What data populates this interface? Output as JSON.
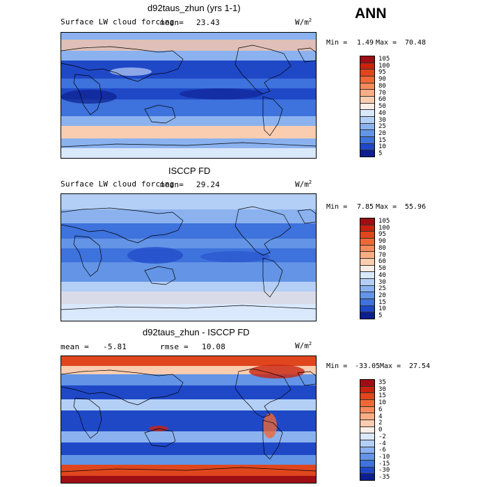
{
  "season": "ANN",
  "panels": [
    {
      "title": "d92taus_zhun (yrs 1-1)",
      "left_label": "Surface LW cloud forcing",
      "mean_label": "mean=",
      "mean_value": "23.43",
      "units_main": "W/m",
      "units_sup": "2",
      "min_label": "Min =",
      "min_value": "1.49",
      "max_label": "Max =",
      "max_value": "70.48",
      "colorbar": {
        "labels": [
          "105",
          "100",
          "95",
          "90",
          "80",
          "70",
          "60",
          "50",
          "40",
          "30",
          "25",
          "20",
          "15",
          "10",
          "5"
        ],
        "colors": [
          "#9e0e14",
          "#c8230f",
          "#e0461e",
          "#ee6838",
          "#f58a5c",
          "#f9ad85",
          "#fbcdb0",
          "#fbeee6",
          "#d9e8fb",
          "#b4cff5",
          "#8bb2ef",
          "#6394e6",
          "#3e72dc",
          "#1f48c7",
          "#0d1f8f"
        ]
      }
    },
    {
      "title": "ISCCP FD",
      "left_label": "Surface LW cloud forcing",
      "mean_label": "mean=",
      "mean_value": "29.24",
      "units_main": "W/m",
      "units_sup": "2",
      "min_label": "Min =",
      "min_value": "7.85",
      "max_label": "Max =",
      "max_value": "55.96",
      "colorbar": {
        "labels": [
          "105",
          "100",
          "95",
          "90",
          "80",
          "70",
          "60",
          "50",
          "40",
          "30",
          "25",
          "20",
          "15",
          "10",
          "5"
        ],
        "colors": [
          "#9e0e14",
          "#c8230f",
          "#e0461e",
          "#ee6838",
          "#f58a5c",
          "#f9ad85",
          "#fbcdb0",
          "#fbeee6",
          "#d9e8fb",
          "#b4cff5",
          "#8bb2ef",
          "#6394e6",
          "#3e72dc",
          "#1f48c7",
          "#0d1f8f"
        ]
      }
    },
    {
      "title": "d92taus_zhun - ISCCP FD",
      "mean_label": "mean =",
      "mean_value": "-5.81",
      "rmse_label": "rmse =",
      "rmse_value": "10.08",
      "units_main": "W/m",
      "units_sup": "2",
      "min_label": "Min =",
      "min_value": "-33.05",
      "max_label": "Max =",
      "max_value": "27.54",
      "colorbar": {
        "labels": [
          "35",
          "30",
          "15",
          "10",
          "6",
          "4",
          "2",
          "0",
          "-2",
          "-4",
          "-6",
          "-10",
          "-15",
          "-30",
          "-35"
        ],
        "colors": [
          "#9e0e14",
          "#c8230f",
          "#e0461e",
          "#ee6838",
          "#f58a5c",
          "#f9ad85",
          "#fbcdb0",
          "#fbeee6",
          "#d9e8fb",
          "#b4cff5",
          "#8bb2ef",
          "#6394e6",
          "#3e72dc",
          "#1f48c7",
          "#0d1f8f"
        ]
      }
    }
  ]
}
